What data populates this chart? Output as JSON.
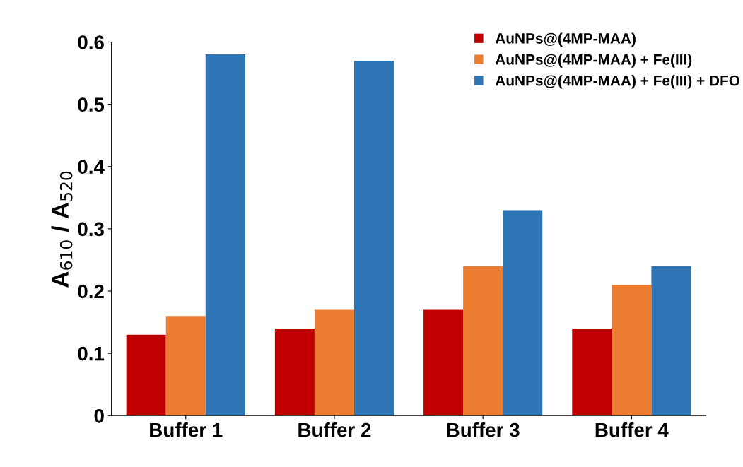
{
  "chart_data": {
    "type": "bar",
    "ylabel": "A$_{610}$ / A$_{520}$",
    "categories": [
      "Buffer 1",
      "Buffer 2",
      "Buffer 3",
      "Buffer 4"
    ],
    "series": [
      {
        "name": "AuNPs@(4MP-MAA)",
        "color": "#c00000",
        "values": [
          0.13,
          0.14,
          0.17,
          0.14
        ]
      },
      {
        "name": "AuNPs@(4MP-MAA) + Fe(III)",
        "color": "#ed7d31",
        "values": [
          0.16,
          0.17,
          0.24,
          0.21
        ]
      },
      {
        "name": "AuNPs@(4MP-MAA) + Fe(III) + DFO",
        "color": "#2e75b6",
        "values": [
          0.58,
          0.57,
          0.33,
          0.24
        ]
      }
    ],
    "ylim": [
      0,
      0.6
    ],
    "yticks": [
      0,
      0.1,
      0.2,
      0.3,
      0.4,
      0.5,
      0.6
    ],
    "grid": false,
    "legend": "top right"
  }
}
